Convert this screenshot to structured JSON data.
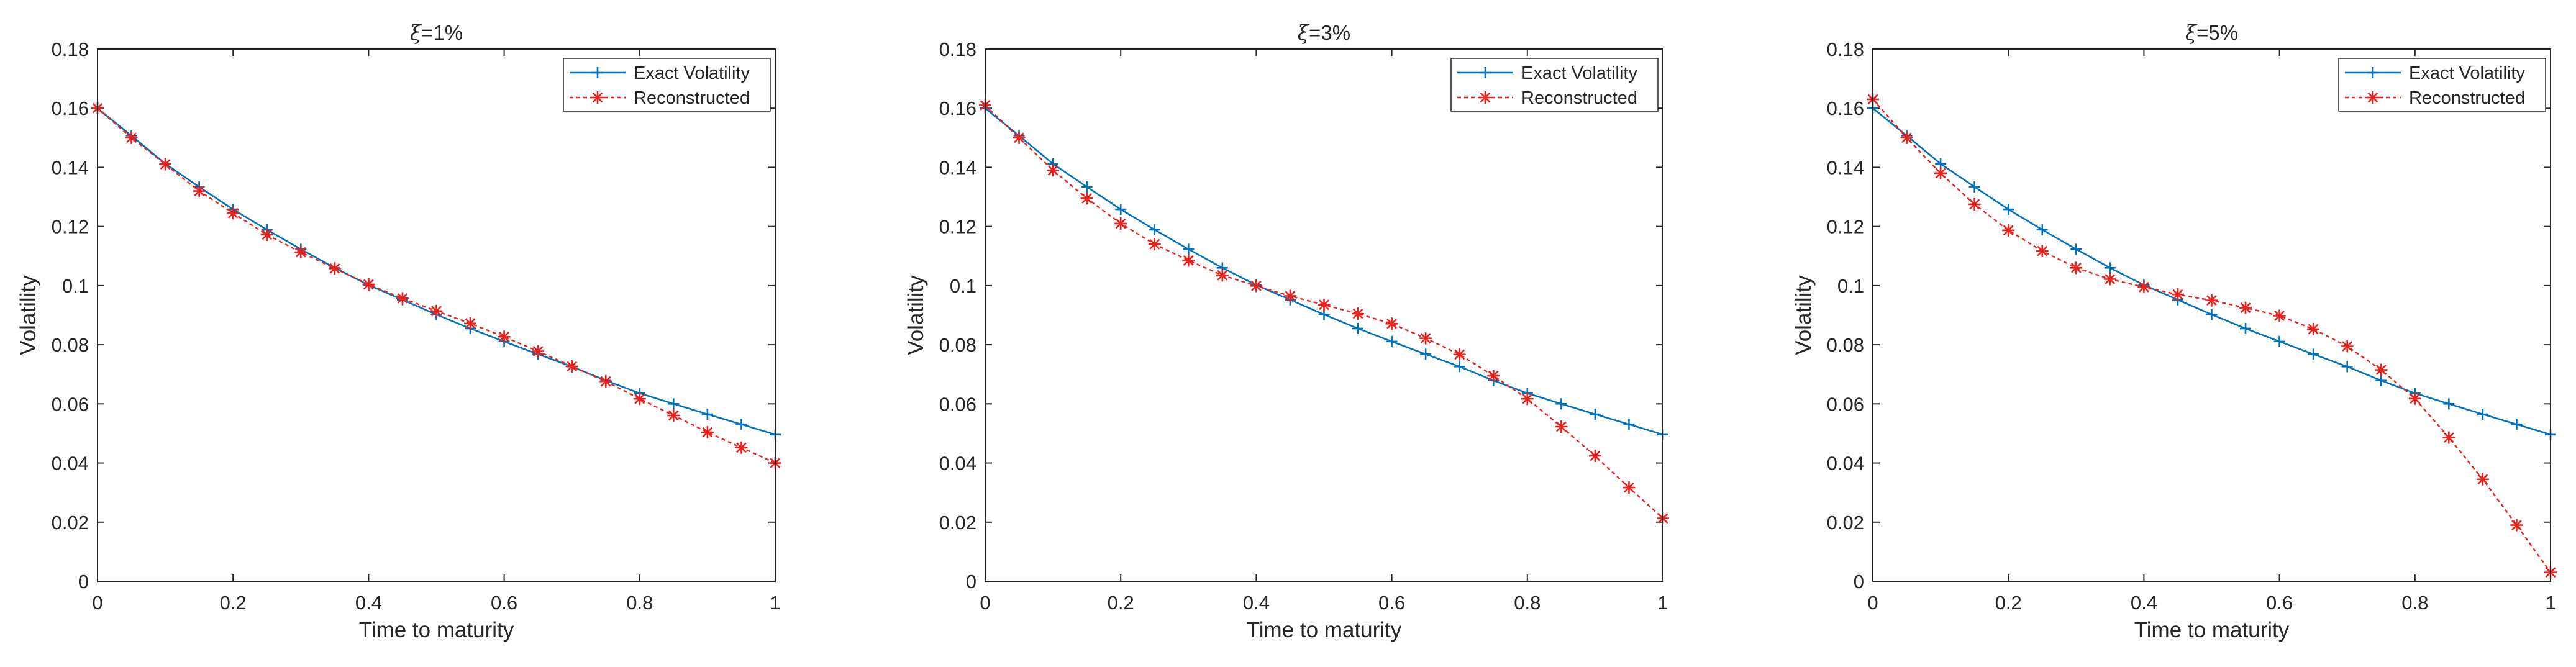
{
  "chart_data": [
    {
      "type": "line",
      "title_symbol": "ξ",
      "title_value": "=1%",
      "xlabel": "Time to maturity",
      "ylabel": "Volatility",
      "xlim": [
        0,
        1
      ],
      "ylim": [
        0,
        0.18
      ],
      "xticks": [
        "0",
        "0.2",
        "0.4",
        "0.6",
        "0.8",
        "1"
      ],
      "yticks": [
        "0",
        "0.02",
        "0.04",
        "0.06",
        "0.08",
        "0.1",
        "0.12",
        "0.14",
        "0.16",
        "0.18"
      ],
      "legend_position": "top-right",
      "x": [
        0,
        0.05,
        0.1,
        0.15,
        0.2,
        0.25,
        0.3,
        0.35,
        0.4,
        0.45,
        0.5,
        0.55,
        0.6,
        0.65,
        0.7,
        0.75,
        0.8,
        0.85,
        0.9,
        0.95,
        1.0
      ],
      "series": [
        {
          "name": "Exact Volatility",
          "color": "#0072BD",
          "marker": "plus",
          "values": [
            0.16,
            0.1507,
            0.1412,
            0.1334,
            0.1258,
            0.1189,
            0.1123,
            0.106,
            0.1002,
            0.0952,
            0.0902,
            0.0855,
            0.0811,
            0.0768,
            0.0726,
            0.0679,
            0.0636,
            0.06,
            0.0565,
            0.0531,
            0.0496
          ]
        },
        {
          "name": "Reconstructed",
          "color": "#E8211C",
          "marker": "asterisk",
          "values": [
            0.16,
            0.15,
            0.141,
            0.132,
            0.1245,
            0.1172,
            0.1113,
            0.1058,
            0.1004,
            0.0957,
            0.0914,
            0.0872,
            0.0827,
            0.0778,
            0.0727,
            0.0676,
            0.0617,
            0.0561,
            0.0504,
            0.0452,
            0.04
          ]
        }
      ]
    },
    {
      "type": "line",
      "title_symbol": "ξ",
      "title_value": "=3%",
      "xlabel": "Time to maturity",
      "ylabel": "Volatility",
      "xlim": [
        0,
        1
      ],
      "ylim": [
        0,
        0.18
      ],
      "xticks": [
        "0",
        "0.2",
        "0.4",
        "0.6",
        "0.8",
        "1"
      ],
      "yticks": [
        "0",
        "0.02",
        "0.04",
        "0.06",
        "0.08",
        "0.1",
        "0.12",
        "0.14",
        "0.16",
        "0.18"
      ],
      "legend_position": "top-right",
      "x": [
        0,
        0.05,
        0.1,
        0.15,
        0.2,
        0.25,
        0.3,
        0.35,
        0.4,
        0.45,
        0.5,
        0.55,
        0.6,
        0.65,
        0.7,
        0.75,
        0.8,
        0.85,
        0.9,
        0.95,
        1.0
      ],
      "series": [
        {
          "name": "Exact Volatility",
          "color": "#0072BD",
          "marker": "plus",
          "values": [
            0.16,
            0.1507,
            0.1412,
            0.1334,
            0.1258,
            0.1189,
            0.1123,
            0.106,
            0.1002,
            0.0952,
            0.0902,
            0.0855,
            0.0811,
            0.0768,
            0.0726,
            0.0679,
            0.0636,
            0.06,
            0.0565,
            0.0531,
            0.0496
          ]
        },
        {
          "name": "Reconstructed",
          "color": "#E8211C",
          "marker": "asterisk",
          "values": [
            0.161,
            0.15,
            0.139,
            0.1295,
            0.121,
            0.114,
            0.1085,
            0.1035,
            0.0999,
            0.0965,
            0.0935,
            0.0905,
            0.0871,
            0.0822,
            0.0767,
            0.0695,
            0.0617,
            0.0523,
            0.0424,
            0.0317,
            0.0213
          ]
        }
      ]
    },
    {
      "type": "line",
      "title_symbol": "ξ",
      "title_value": "=5%",
      "xlabel": "Time to maturity",
      "ylabel": "Volatility",
      "xlim": [
        0,
        1
      ],
      "ylim": [
        0,
        0.18
      ],
      "xticks": [
        "0",
        "0.2",
        "0.4",
        "0.6",
        "0.8",
        "1"
      ],
      "yticks": [
        "0",
        "0.02",
        "0.04",
        "0.06",
        "0.08",
        "0.1",
        "0.12",
        "0.14",
        "0.16",
        "0.18"
      ],
      "legend_position": "top-right",
      "x": [
        0,
        0.05,
        0.1,
        0.15,
        0.2,
        0.25,
        0.3,
        0.35,
        0.4,
        0.45,
        0.5,
        0.55,
        0.6,
        0.65,
        0.7,
        0.75,
        0.8,
        0.85,
        0.9,
        0.95,
        1.0
      ],
      "series": [
        {
          "name": "Exact Volatility",
          "color": "#0072BD",
          "marker": "plus",
          "values": [
            0.16,
            0.1507,
            0.1412,
            0.1334,
            0.1258,
            0.1189,
            0.1123,
            0.106,
            0.1002,
            0.0952,
            0.0902,
            0.0855,
            0.0811,
            0.0768,
            0.0726,
            0.0679,
            0.0636,
            0.06,
            0.0565,
            0.0531,
            0.0496
          ]
        },
        {
          "name": "Reconstructed",
          "color": "#E8211C",
          "marker": "asterisk",
          "values": [
            0.163,
            0.15,
            0.138,
            0.1275,
            0.1187,
            0.1117,
            0.106,
            0.1022,
            0.0995,
            0.097,
            0.095,
            0.0925,
            0.0898,
            0.0853,
            0.0795,
            0.0715,
            0.0618,
            0.0486,
            0.0345,
            0.019,
            0.003
          ]
        }
      ]
    }
  ]
}
